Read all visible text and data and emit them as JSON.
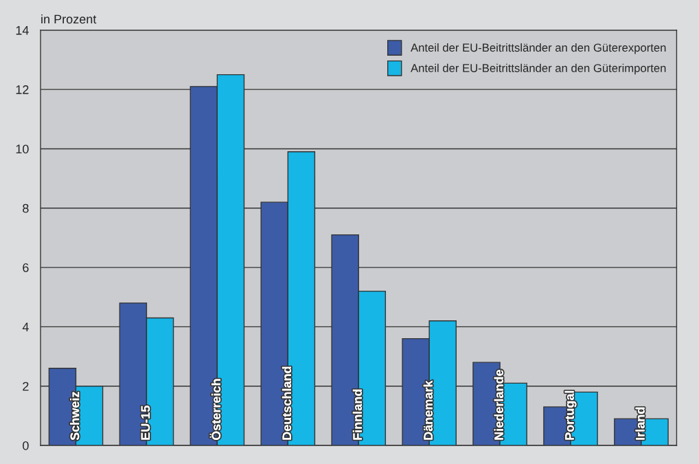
{
  "chart_data": {
    "type": "bar",
    "ylabel": "in Prozent",
    "categories": [
      "Schweiz",
      "EU-15",
      "Österreich",
      "Deutschland",
      "Finnland",
      "Dänemark",
      "Niederlande",
      "Portugal",
      "Irland"
    ],
    "series": [
      {
        "name": "Anteil der EU-Beitrittsländer an den Güterexporten",
        "color": "#3d5ca8",
        "values": [
          2.6,
          4.8,
          12.1,
          8.2,
          7.1,
          3.6,
          2.8,
          1.3,
          0.9
        ]
      },
      {
        "name": "Anteil der EU-Beitrittsländer an den Güterimporten",
        "color": "#16b6e6",
        "values": [
          2.0,
          4.3,
          12.5,
          9.9,
          5.2,
          4.2,
          2.1,
          1.8,
          0.9
        ]
      }
    ],
    "ylim": [
      0,
      14
    ],
    "yticks": [
      0,
      2,
      4,
      6,
      8,
      10,
      12,
      14
    ],
    "grid": "y",
    "legend": "top right"
  }
}
